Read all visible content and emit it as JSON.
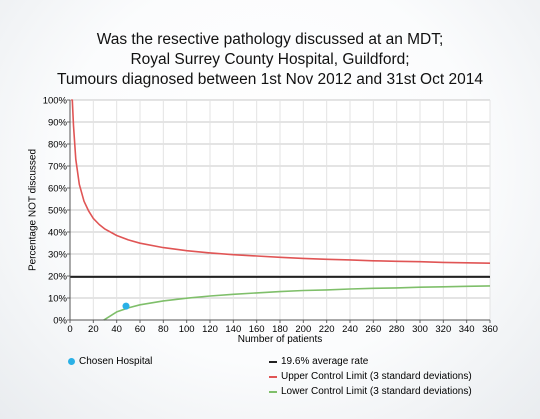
{
  "chart_data": {
    "type": "line",
    "title_lines": [
      "Was the resective pathology discussed at an MDT;",
      "Royal Surrey County Hospital, Guildford;",
      "Tumours diagnosed between 1st Nov 2012 and 31st Oct 2014"
    ],
    "xlabel": "Number of patients",
    "ylabel": "Percentage NOT discussed",
    "xlim": [
      0,
      360
    ],
    "ylim": [
      0,
      100
    ],
    "x_ticks": [
      0,
      20,
      40,
      60,
      80,
      100,
      120,
      140,
      160,
      180,
      200,
      220,
      240,
      260,
      280,
      300,
      320,
      340,
      360
    ],
    "y_ticks": [
      0,
      10,
      20,
      30,
      40,
      50,
      60,
      70,
      80,
      90,
      100
    ],
    "y_tick_labels": [
      "0%",
      "10%",
      "20%",
      "30%",
      "40%",
      "50%",
      "60%",
      "70%",
      "80%",
      "90%",
      "100%"
    ],
    "grid": true,
    "average_rate": 19.6,
    "series": [
      {
        "name": "19.6% average rate",
        "color": "#222222",
        "x": [
          0,
          360
        ],
        "y": [
          19.6,
          19.6
        ]
      },
      {
        "name": "Upper Control Limit (3 standard deviations)",
        "color": "#e05555",
        "x": [
          1,
          2,
          3,
          5,
          8,
          12,
          16,
          20,
          25,
          30,
          40,
          50,
          60,
          80,
          100,
          120,
          140,
          160,
          180,
          200,
          220,
          240,
          260,
          280,
          300,
          320,
          340,
          360
        ],
        "y": [
          100,
          100,
          88.3,
          73.0,
          61.7,
          54.0,
          49.5,
          46.2,
          43.4,
          41.3,
          38.4,
          36.4,
          34.9,
          32.9,
          31.5,
          30.5,
          29.7,
          29.1,
          28.5,
          28.0,
          27.6,
          27.3,
          26.9,
          26.7,
          26.5,
          26.2,
          26.0,
          25.8
        ]
      },
      {
        "name": "Lower Control Limit (3 standard deviations)",
        "color": "#7fbf6a",
        "x": [
          29,
          30,
          40,
          50,
          60,
          80,
          100,
          120,
          140,
          160,
          180,
          200,
          220,
          240,
          260,
          280,
          300,
          320,
          340,
          360
        ],
        "y": [
          0,
          0.3,
          3.7,
          5.5,
          6.9,
          8.7,
          9.9,
          10.9,
          11.7,
          12.3,
          12.9,
          13.4,
          13.7,
          14.1,
          14.4,
          14.6,
          14.9,
          15.1,
          15.3,
          15.5
        ]
      }
    ],
    "points": [
      {
        "name": "Chosen Hospital",
        "color": "#2ab0e6",
        "x": 48,
        "y": 6.3
      }
    ],
    "legend_placement": "bottom"
  }
}
